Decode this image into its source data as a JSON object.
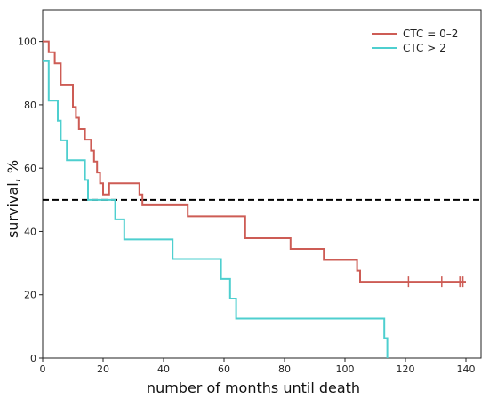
{
  "chart_data": {
    "type": "line",
    "xlabel": "number of months until death",
    "ylabel": "survival, %",
    "xlim": [
      0,
      145
    ],
    "ylim": [
      0,
      110
    ],
    "x_ticks": [
      0,
      20,
      40,
      60,
      80,
      100,
      120,
      140
    ],
    "y_ticks": [
      0,
      20,
      40,
      60,
      80,
      100
    ],
    "grid": false,
    "legend_position": "top-right",
    "reference_line": {
      "y": 50,
      "style": "dashed",
      "color": "#000000"
    },
    "series": [
      {
        "name": "CTC = 0–2",
        "color": "#cd5c55",
        "step": true,
        "x": [
          0,
          2,
          4,
          6,
          10,
          11,
          12,
          14,
          16,
          17,
          18,
          19,
          20,
          22,
          32,
          33,
          48,
          67,
          82,
          93,
          104,
          105,
          140
        ],
        "y": [
          100,
          96.6,
          93.1,
          86.2,
          79.3,
          75.9,
          72.4,
          69,
          65.5,
          62.1,
          58.6,
          55.2,
          51.7,
          55.2,
          51.7,
          48.3,
          44.8,
          37.9,
          34.5,
          31,
          27.6,
          24.1,
          24.1
        ],
        "censored_x": [
          121,
          132,
          138,
          139
        ]
      },
      {
        "name": "CTC > 2",
        "color": "#4ecfcf",
        "step": true,
        "x": [
          0,
          2,
          5,
          6,
          8,
          12,
          14,
          15,
          24,
          27,
          43,
          59,
          62,
          64,
          113,
          114
        ],
        "y": [
          93.8,
          81.3,
          75,
          68.8,
          62.5,
          62.5,
          56.3,
          50,
          43.8,
          37.5,
          31.3,
          25,
          18.8,
          12.5,
          6.3,
          0
        ]
      }
    ]
  }
}
